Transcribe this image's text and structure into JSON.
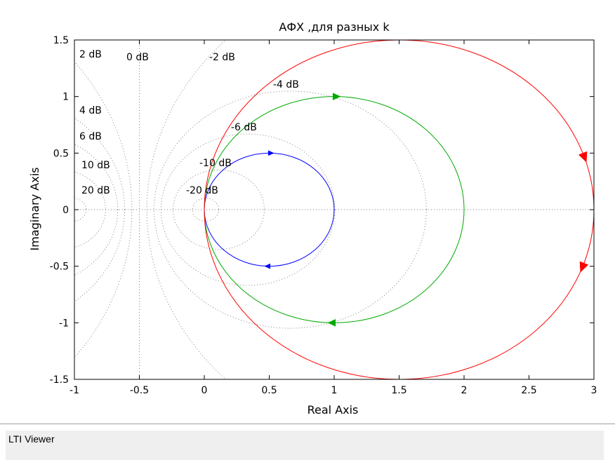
{
  "chart_data": {
    "type": "line",
    "title": "АФХ ,для разных k",
    "xlabel": "Real Axis",
    "ylabel": "Imaginary Axis",
    "xlim": [
      -1,
      3
    ],
    "ylim": [
      -1.5,
      1.5
    ],
    "xticks": [
      -1,
      -0.5,
      0,
      0.5,
      1,
      1.5,
      2,
      2.5,
      3
    ],
    "xtick_labels": [
      "-1",
      "-0.5",
      "0",
      "0.5",
      "1",
      "1.5",
      "2",
      "2.5",
      "3"
    ],
    "yticks": [
      -1.5,
      -1,
      -0.5,
      0,
      0.5,
      1,
      1.5
    ],
    "ytick_labels": [
      "-1.5",
      "-1",
      "-0.5",
      "0",
      "0.5",
      "1",
      "1.5"
    ],
    "grid": "dotted M-circles (constant gain contours)",
    "grid_db_values": [
      20,
      10,
      6,
      4,
      2,
      0,
      -2,
      -4,
      -6,
      -10,
      -20
    ],
    "grid_labels": [
      "2 dB",
      "0 dB",
      "-2 dB",
      "-4 dB",
      "4 dB",
      "6 dB",
      "-6 dB",
      "10 dB",
      "-10 dB",
      "20 dB",
      "-20 dB"
    ],
    "series": [
      {
        "color": "#0000ff",
        "shape": "circle",
        "center": [
          0.5,
          0
        ],
        "radius": 0.5
      },
      {
        "color": "#00aa00",
        "shape": "circle",
        "center": [
          1.0,
          0
        ],
        "radius": 1.0
      },
      {
        "color": "#ff0000",
        "shape": "circle",
        "center": [
          1.5,
          0
        ],
        "radius": 1.5
      }
    ]
  },
  "status": {
    "label": "LTI Viewer"
  }
}
